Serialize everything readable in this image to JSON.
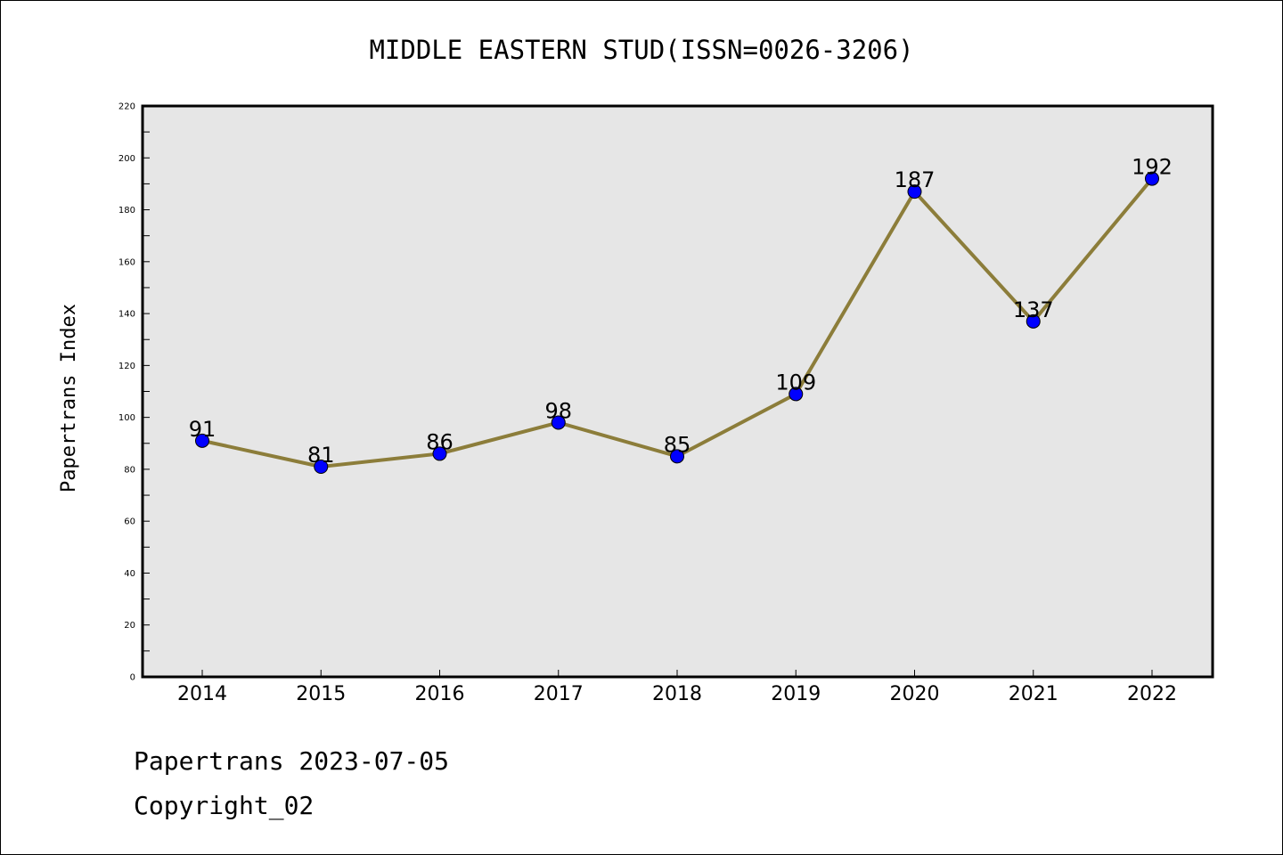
{
  "chart_data": {
    "type": "line",
    "title": "MIDDLE EASTERN STUD(ISSN=0026-3206)",
    "xlabel": "",
    "ylabel": "Papertrans Index",
    "categories": [
      "2014",
      "2015",
      "2016",
      "2017",
      "2018",
      "2019",
      "2020",
      "2021",
      "2022"
    ],
    "series": [
      {
        "values": [
          91,
          81,
          86,
          98,
          85,
          109,
          187,
          137,
          192
        ]
      }
    ],
    "ylim": [
      0,
      220
    ],
    "yticks": [
      0,
      20,
      40,
      60,
      80,
      100,
      120,
      140,
      160,
      180,
      200,
      220
    ],
    "grid": false,
    "line_color": "#8c7d3a",
    "marker_color": "#0000ff",
    "plot_background": "#e6e6e6"
  },
  "footer": {
    "line1": "Papertrans 2023-07-05",
    "line2": "Copyright_02"
  }
}
